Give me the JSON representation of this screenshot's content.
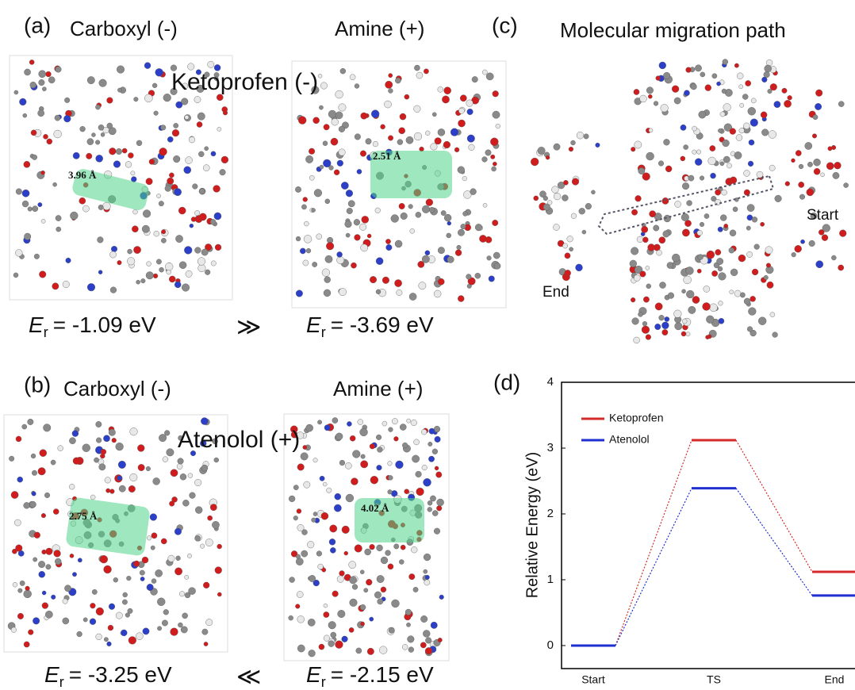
{
  "panels": {
    "a": {
      "label": "(a)",
      "left_title": "Carboxyl (-)",
      "right_title": "Amine (+)",
      "molecule": "Ketoprofen (-)",
      "left_distance": "3.96 Å",
      "right_distance": "2.51 Å",
      "left_energy": {
        "symbol": "E",
        "subscript": "r",
        "text": "= -1.09 eV"
      },
      "comparison": "≫",
      "right_energy": {
        "symbol": "E",
        "subscript": "r",
        "text": "= -3.69 eV"
      }
    },
    "b": {
      "label": "(b)",
      "left_title": "Carboxyl (-)",
      "right_title": "Amine (+)",
      "molecule": "Atenolol (+)",
      "left_distance": "2.75 Å",
      "right_distance": "4.02 Å",
      "left_energy": {
        "symbol": "E",
        "subscript": "r",
        "text": "= -3.25 eV"
      },
      "comparison": "≪",
      "right_energy": {
        "symbol": "E",
        "subscript": "r",
        "text": "= -2.15 eV"
      }
    },
    "c": {
      "label": "(c)",
      "title": "Molecular migration path",
      "start": "Start",
      "end": "End"
    }
  },
  "chart_data": {
    "type": "levels",
    "panel_label": "(d)",
    "y_label": "Relative Energy (eV)",
    "categories": [
      "Start",
      "TS",
      "End"
    ],
    "series": [
      {
        "name": "Ketoprofen",
        "color": "#d42a2a",
        "values": [
          0,
          3.12,
          1.12
        ]
      },
      {
        "name": "Atenolol",
        "color": "#1f2fd0",
        "values": [
          0,
          2.39,
          0.76
        ]
      }
    ],
    "ylim": [
      -0.35,
      4
    ],
    "yticks": [
      0,
      1,
      2,
      3,
      4
    ],
    "legend": "upper-left"
  }
}
